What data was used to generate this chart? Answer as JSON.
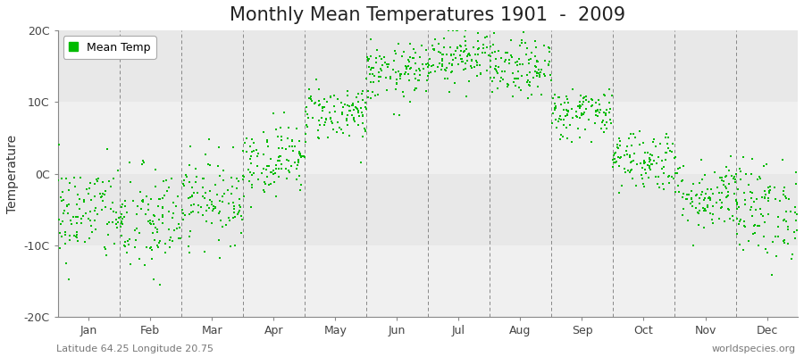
{
  "title": "Monthly Mean Temperatures 1901  -  2009",
  "ylabel": "Temperature",
  "ylim": [
    -20,
    20
  ],
  "yticks": [
    -20,
    -10,
    0,
    10,
    20
  ],
  "ytick_labels": [
    "-20C",
    "-10C",
    "0C",
    "10C",
    "20C"
  ],
  "months": [
    "Jan",
    "Feb",
    "Mar",
    "Apr",
    "May",
    "Jun",
    "Jul",
    "Aug",
    "Sep",
    "Oct",
    "Nov",
    "Dec"
  ],
  "scatter_color": "#00BB00",
  "background_color": "#ffffff",
  "plot_bg_color": "#f0f0f0",
  "band_light_color": "#e8e8e8",
  "band_dark_color": "#f0f0f0",
  "grid_color": "#888888",
  "title_fontsize": 15,
  "label_fontsize": 10,
  "tick_fontsize": 9,
  "legend_label": "Mean Temp",
  "footer_left": "Latitude 64.25 Longitude 20.75",
  "footer_right": "worldspecies.org",
  "mean_temps": [
    -5.5,
    -7.0,
    -3.5,
    2.0,
    8.5,
    14.0,
    16.5,
    14.5,
    8.5,
    2.0,
    -3.0,
    -5.0
  ],
  "temp_spread": [
    3.5,
    4.0,
    3.0,
    2.5,
    2.0,
    2.0,
    2.0,
    2.0,
    1.8,
    2.2,
    2.5,
    3.5
  ],
  "n_years": 109,
  "seed": 42
}
